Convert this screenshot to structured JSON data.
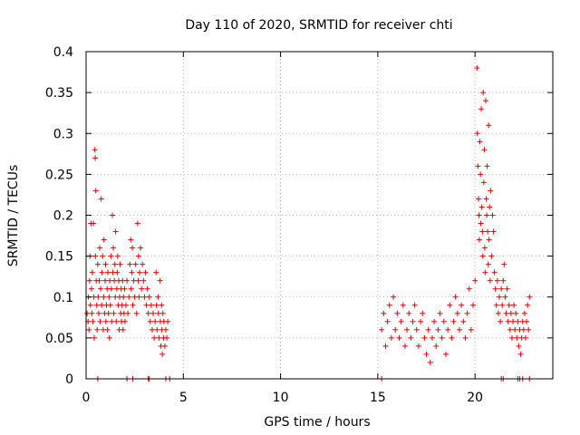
{
  "chart_data": {
    "type": "scatter",
    "title": "Day 110 of 2020, SRMTID for receiver chti",
    "xlabel": "GPS time / hours",
    "ylabel": "SRMTID / TECUs",
    "xlim": [
      0,
      24
    ],
    "ylim": [
      0,
      0.4
    ],
    "xticks": [
      0,
      5,
      10,
      15,
      20
    ],
    "xtick_labels": [
      "0",
      "5",
      "10",
      "15",
      "20"
    ],
    "yticks": [
      0,
      0.05,
      0.1,
      0.15,
      0.2,
      0.25,
      0.3,
      0.35,
      0.4
    ],
    "ytick_labels": [
      "0",
      "0.05",
      "0.1",
      "0.15",
      "0.2",
      "0.25",
      "0.3",
      "0.35",
      "0.4"
    ],
    "grid": true,
    "marker": "+",
    "color": "#e00000",
    "series": [
      {
        "name": "SRMTID",
        "points": [
          [
            0.05,
            0.08
          ],
          [
            0.1,
            0.07
          ],
          [
            0.12,
            0.1
          ],
          [
            0.15,
            0.06
          ],
          [
            0.18,
            0.12
          ],
          [
            0.2,
            0.15
          ],
          [
            0.22,
            0.09
          ],
          [
            0.25,
            0.19
          ],
          [
            0.28,
            0.11
          ],
          [
            0.3,
            0.08
          ],
          [
            0.32,
            0.13
          ],
          [
            0.35,
            0.07
          ],
          [
            0.38,
            0.19
          ],
          [
            0.4,
            0.1
          ],
          [
            0.42,
            0.05
          ],
          [
            0.45,
            0.28
          ],
          [
            0.47,
            0.27
          ],
          [
            0.48,
            0.15
          ],
          [
            0.5,
            0.23
          ],
          [
            0.52,
            0.12
          ],
          [
            0.55,
            0.09
          ],
          [
            0.57,
            0.06
          ],
          [
            0.6,
            0.14
          ],
          [
            0.62,
            0.1
          ],
          [
            0.65,
            0.08
          ],
          [
            0.68,
            0.12
          ],
          [
            0.7,
            0.16
          ],
          [
            0.72,
            0.07
          ],
          [
            0.75,
            0.11
          ],
          [
            0.78,
            0.22
          ],
          [
            0.8,
            0.09
          ],
          [
            0.82,
            0.13
          ],
          [
            0.85,
            0.15
          ],
          [
            0.88,
            0.06
          ],
          [
            0.9,
            0.1
          ],
          [
            0.92,
            0.17
          ],
          [
            0.95,
            0.08
          ],
          [
            0.98,
            0.12
          ],
          [
            1.0,
            0.14
          ],
          [
            1.02,
            0.07
          ],
          [
            1.05,
            0.09
          ],
          [
            1.08,
            0.11
          ],
          [
            1.1,
            0.06
          ],
          [
            1.12,
            0.13
          ],
          [
            1.15,
            0.08
          ],
          [
            1.18,
            0.1
          ],
          [
            1.2,
            0.05
          ],
          [
            1.22,
            0.12
          ],
          [
            1.25,
            0.09
          ],
          [
            1.28,
            0.15
          ],
          [
            1.3,
            0.11
          ],
          [
            1.32,
            0.07
          ],
          [
            1.35,
            0.2
          ],
          [
            1.38,
            0.13
          ],
          [
            1.4,
            0.16
          ],
          [
            1.42,
            0.08
          ],
          [
            1.45,
            0.12
          ],
          [
            1.48,
            0.14
          ],
          [
            1.5,
            0.1
          ],
          [
            1.52,
            0.18
          ],
          [
            1.55,
            0.07
          ],
          [
            1.58,
            0.11
          ],
          [
            1.6,
            0.13
          ],
          [
            1.62,
            0.15
          ],
          [
            1.65,
            0.09
          ],
          [
            1.68,
            0.12
          ],
          [
            1.7,
            0.06
          ],
          [
            1.72,
            0.1
          ],
          [
            1.75,
            0.14
          ],
          [
            1.78,
            0.08
          ],
          [
            1.8,
            0.11
          ],
          [
            1.82,
            0.07
          ],
          [
            1.85,
            0.09
          ],
          [
            1.88,
            0.12
          ],
          [
            1.9,
            0.06
          ],
          [
            1.92,
            0.1
          ],
          [
            1.95,
            0.08
          ],
          [
            1.98,
            0.11
          ],
          [
            2.0,
            0.07
          ],
          [
            2.05,
            0.09
          ],
          [
            2.1,
            0.12
          ],
          [
            2.15,
            0.08
          ],
          [
            2.2,
            0.1
          ],
          [
            2.25,
            0.14
          ],
          [
            2.3,
            0.17
          ],
          [
            2.32,
            0.11
          ],
          [
            2.35,
            0.13
          ],
          [
            2.38,
            0.16
          ],
          [
            2.4,
            0.09
          ],
          [
            2.45,
            0.12
          ],
          [
            2.5,
            0.1
          ],
          [
            2.55,
            0.14
          ],
          [
            2.6,
            0.08
          ],
          [
            2.65,
            0.19
          ],
          [
            2.68,
            0.12
          ],
          [
            2.7,
            0.15
          ],
          [
            2.72,
            0.1
          ],
          [
            2.75,
            0.13
          ],
          [
            2.8,
            0.16
          ],
          [
            2.85,
            0.11
          ],
          [
            2.9,
            0.14
          ],
          [
            2.95,
            0.12
          ],
          [
            3.0,
            0.1
          ],
          [
            3.05,
            0.13
          ],
          [
            3.1,
            0.09
          ],
          [
            3.15,
            0.11
          ],
          [
            3.2,
            0.08
          ],
          [
            3.25,
            0.1
          ],
          [
            3.3,
            0.07
          ],
          [
            3.35,
            0.09
          ],
          [
            3.4,
            0.06
          ],
          [
            3.45,
            0.08
          ],
          [
            3.5,
            0.05
          ],
          [
            3.55,
            0.07
          ],
          [
            3.6,
            0.13
          ],
          [
            3.62,
            0.09
          ],
          [
            3.65,
            0.06
          ],
          [
            3.7,
            0.1
          ],
          [
            3.72,
            0.08
          ],
          [
            3.75,
            0.05
          ],
          [
            3.8,
            0.12
          ],
          [
            3.82,
            0.07
          ],
          [
            3.85,
            0.04
          ],
          [
            3.88,
            0.09
          ],
          [
            3.9,
            0.06
          ],
          [
            3.92,
            0.03
          ],
          [
            3.95,
            0.08
          ],
          [
            3.98,
            0.05
          ],
          [
            4.0,
            0.07
          ],
          [
            4.05,
            0.04
          ],
          [
            4.1,
            0.06
          ],
          [
            4.15,
            0.05
          ],
          [
            4.2,
            0.07
          ],
          [
            15.2,
            0.06
          ],
          [
            15.3,
            0.08
          ],
          [
            15.4,
            0.04
          ],
          [
            15.5,
            0.07
          ],
          [
            15.6,
            0.09
          ],
          [
            15.7,
            0.05
          ],
          [
            15.8,
            0.1
          ],
          [
            15.9,
            0.06
          ],
          [
            16.0,
            0.08
          ],
          [
            16.1,
            0.05
          ],
          [
            16.2,
            0.07
          ],
          [
            16.3,
            0.09
          ],
          [
            16.4,
            0.04
          ],
          [
            16.5,
            0.06
          ],
          [
            16.6,
            0.08
          ],
          [
            16.7,
            0.05
          ],
          [
            16.8,
            0.07
          ],
          [
            16.9,
            0.09
          ],
          [
            17.0,
            0.06
          ],
          [
            17.1,
            0.04
          ],
          [
            17.2,
            0.07
          ],
          [
            17.3,
            0.08
          ],
          [
            17.4,
            0.05
          ],
          [
            17.5,
            0.03
          ],
          [
            17.6,
            0.06
          ],
          [
            17.7,
            0.02
          ],
          [
            17.8,
            0.05
          ],
          [
            17.9,
            0.07
          ],
          [
            18.0,
            0.04
          ],
          [
            18.1,
            0.06
          ],
          [
            18.2,
            0.08
          ],
          [
            18.3,
            0.05
          ],
          [
            18.4,
            0.07
          ],
          [
            18.5,
            0.03
          ],
          [
            18.6,
            0.06
          ],
          [
            18.7,
            0.09
          ],
          [
            18.8,
            0.05
          ],
          [
            18.9,
            0.07
          ],
          [
            19.0,
            0.1
          ],
          [
            19.1,
            0.08
          ],
          [
            19.2,
            0.06
          ],
          [
            19.3,
            0.09
          ],
          [
            19.4,
            0.07
          ],
          [
            19.5,
            0.05
          ],
          [
            19.6,
            0.08
          ],
          [
            19.7,
            0.11
          ],
          [
            19.8,
            0.06
          ],
          [
            19.9,
            0.09
          ],
          [
            20.0,
            0.12
          ],
          [
            20.1,
            0.38
          ],
          [
            20.12,
            0.3
          ],
          [
            20.15,
            0.26
          ],
          [
            20.18,
            0.22
          ],
          [
            20.2,
            0.2
          ],
          [
            20.22,
            0.17
          ],
          [
            20.25,
            0.29
          ],
          [
            20.28,
            0.25
          ],
          [
            20.3,
            0.19
          ],
          [
            20.32,
            0.33
          ],
          [
            20.35,
            0.21
          ],
          [
            20.38,
            0.18
          ],
          [
            20.4,
            0.15
          ],
          [
            20.42,
            0.35
          ],
          [
            20.45,
            0.24
          ],
          [
            20.48,
            0.28
          ],
          [
            20.5,
            0.16
          ],
          [
            20.52,
            0.13
          ],
          [
            20.55,
            0.34
          ],
          [
            20.58,
            0.22
          ],
          [
            20.6,
            0.2
          ],
          [
            20.62,
            0.26
          ],
          [
            20.65,
            0.18
          ],
          [
            20.68,
            0.14
          ],
          [
            20.7,
            0.31
          ],
          [
            20.72,
            0.17
          ],
          [
            20.75,
            0.21
          ],
          [
            20.78,
            0.12
          ],
          [
            20.8,
            0.23
          ],
          [
            20.85,
            0.15
          ],
          [
            20.9,
            0.2
          ],
          [
            20.95,
            0.18
          ],
          [
            21.0,
            0.13
          ],
          [
            21.05,
            0.11
          ],
          [
            21.1,
            0.09
          ],
          [
            21.15,
            0.12
          ],
          [
            21.2,
            0.08
          ],
          [
            21.25,
            0.1
          ],
          [
            21.3,
            0.07
          ],
          [
            21.35,
            0.11
          ],
          [
            21.4,
            0.09
          ],
          [
            21.45,
            0.12
          ],
          [
            21.5,
            0.14
          ],
          [
            21.55,
            0.1
          ],
          [
            21.6,
            0.08
          ],
          [
            21.65,
            0.11
          ],
          [
            21.7,
            0.07
          ],
          [
            21.75,
            0.09
          ],
          [
            21.8,
            0.06
          ],
          [
            21.85,
            0.08
          ],
          [
            21.9,
            0.05
          ],
          [
            21.95,
            0.07
          ],
          [
            22.0,
            0.09
          ],
          [
            22.05,
            0.06
          ],
          [
            22.1,
            0.08
          ],
          [
            22.15,
            0.05
          ],
          [
            22.2,
            0.07
          ],
          [
            22.25,
            0.04
          ],
          [
            22.3,
            0.06
          ],
          [
            22.35,
            0.03
          ],
          [
            22.4,
            0.05
          ],
          [
            22.45,
            0.07
          ],
          [
            22.5,
            0.06
          ],
          [
            22.55,
            0.08
          ],
          [
            22.6,
            0.05
          ],
          [
            22.65,
            0.07
          ],
          [
            22.7,
            0.09
          ],
          [
            22.75,
            0.06
          ],
          [
            22.8,
            0.1
          ]
        ]
      }
    ]
  }
}
